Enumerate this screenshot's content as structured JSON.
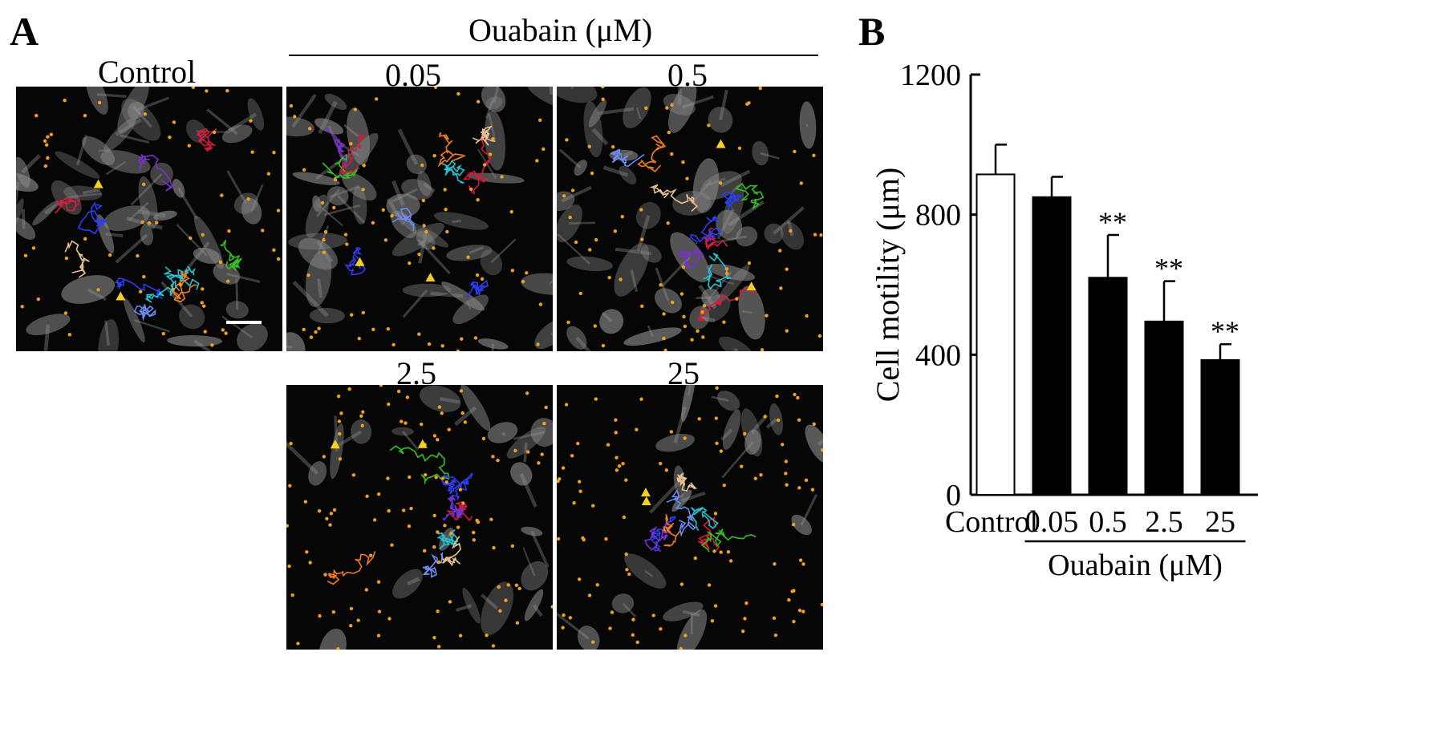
{
  "figure": {
    "panel_a": {
      "letter": "A",
      "group_label": "Ouabain (μM)",
      "panels": [
        {
          "id": "control",
          "label": "Control"
        },
        {
          "id": "c005",
          "label": "0.05"
        },
        {
          "id": "c05",
          "label": "0.5"
        },
        {
          "id": "c25",
          "label": "2.5"
        },
        {
          "id": "c250",
          "label": "25"
        }
      ]
    },
    "panel_b": {
      "letter": "B",
      "group_label": "Ouabain (μM)"
    }
  },
  "colors": {
    "background": "#060606",
    "cell_marker": "#f0a020",
    "control_bar_fill": "#ffffff",
    "treated_bar_fill": "#000000",
    "track_colors": [
      "#2b3df0",
      "#d41c3a",
      "#26c2d0",
      "#7a2fd0",
      "#34c024",
      "#f07a20",
      "#e8c090",
      "#6a8af0"
    ]
  },
  "chart_data": {
    "type": "bar",
    "ylabel": "Cell motility (μm)",
    "categories": [
      "Control",
      "0.05",
      "0.5",
      "2.5",
      "25"
    ],
    "values": [
      915,
      850,
      620,
      495,
      385
    ],
    "errors": [
      85,
      58,
      122,
      115,
      45
    ],
    "annotations": [
      "",
      "",
      "**",
      "**",
      "**"
    ],
    "ylim": [
      0,
      1200
    ],
    "yticks": [
      0,
      400,
      800,
      1200
    ],
    "grid": false,
    "legend": "none",
    "group_label": "Ouabain (μM)"
  }
}
